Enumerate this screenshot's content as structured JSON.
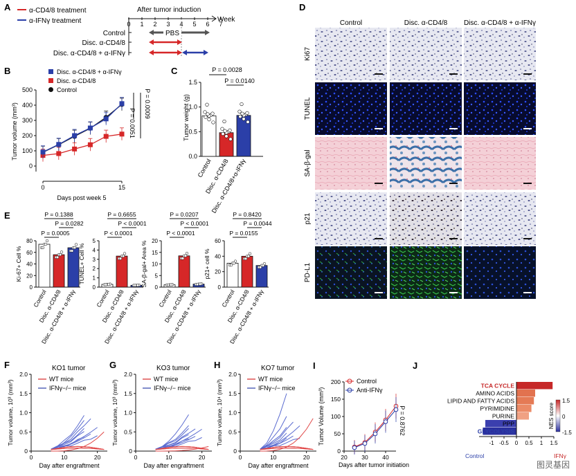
{
  "colors": {
    "red": "#d62728",
    "blue": "#2b3fa8",
    "black": "#111111",
    "grey": "#555555",
    "tuneBg": "#0b1036",
    "sagal": "#f3c9d1",
    "pdl1": "#0d1a2c"
  },
  "watermark": "图灵基因",
  "panelA": {
    "letter": "A",
    "legend": [
      "α-CD4/8 treatment",
      "α-IFNγ treatment"
    ],
    "timeline_title": "After tumor induction",
    "week_label": "Week",
    "ticks": [
      "0",
      "1",
      "2",
      "3",
      "4",
      "5",
      "6",
      "7"
    ],
    "rows": [
      "Control",
      "Disc. α-CD4/8",
      "Disc. α-CD4/8 + α-IFNγ"
    ],
    "pbs": "PBS"
  },
  "panelB": {
    "letter": "B",
    "legend": [
      "Disc. α-CD4/8 + α-IFNγ",
      "Disc. α-CD4/8",
      "Control"
    ],
    "ylabel": "Tumor volume (mm³)",
    "xlabel": "Days post week 5",
    "p1": "P = 0.0009",
    "p2": "P = 0.0051",
    "chart_data": {
      "type": "line",
      "x": [
        0,
        3,
        6,
        9,
        12,
        15
      ],
      "xlim": [
        0,
        15
      ],
      "ylim": [
        0,
        500
      ],
      "yticks": [
        0,
        100,
        200,
        300,
        400,
        500
      ],
      "series": [
        {
          "name": "Control",
          "values": [
            90,
            140,
            195,
            248,
            320,
            405
          ]
        },
        {
          "name": "Disc. α-CD4/8",
          "values": [
            70,
            82,
            112,
            140,
            195,
            210
          ]
        },
        {
          "name": "Disc. α-CD4/8 + α-IFNγ",
          "values": [
            92,
            142,
            200,
            250,
            310,
            410
          ]
        }
      ]
    }
  },
  "panelC": {
    "letter": "C",
    "ylabel": "Tumor weight (g)",
    "p1": "P = 0.0028",
    "p2": "P = 0.0140",
    "chart_data": {
      "type": "bar",
      "categories": [
        "Control",
        "Disc. α-CD4/8",
        "Disc. α-CD4/8+α-IFNγ"
      ],
      "values": [
        0.82,
        0.48,
        0.83
      ],
      "ylim": [
        0,
        1.5
      ],
      "yticks": [
        0,
        0.5,
        1.0,
        1.5
      ]
    }
  },
  "panelD": {
    "letter": "D",
    "columns": [
      "Control",
      "Disc. α-CD4/8",
      "Disc. α-CD4/8 + α-IFNγ"
    ],
    "rows": [
      "Ki67",
      "TUNEL",
      "SA-β-gal",
      "p21",
      "PD-L1"
    ]
  },
  "panelE": {
    "letter": "E",
    "categories": [
      "Control",
      "Disc. α-CD4/8",
      "Disc. α-CD4/8 + α-IFNγ"
    ],
    "charts": [
      {
        "ylabel": "Ki-67+ Cell %",
        "yticks": [
          "0",
          "20",
          "40",
          "60",
          "80"
        ],
        "ymax": 80,
        "values": [
          74,
          56,
          68
        ],
        "p": [
          "P = 0.1388",
          "P = 0.0282",
          "P = 0.0005"
        ]
      },
      {
        "ylabel": "TUNEL+ Cell %",
        "yticks": [
          "0",
          "1",
          "2",
          "3",
          "4",
          "5"
        ],
        "ymax": 5,
        "values": [
          0.3,
          3.35,
          0.2
        ],
        "p": [
          "P = 0.6655",
          "P < 0.0001",
          "P < 0.0001"
        ]
      },
      {
        "ylabel": "SA-β-gal+ Area %",
        "yticks": [
          "0",
          "5",
          "10",
          "15",
          "20"
        ],
        "ymax": 20,
        "values": [
          1.0,
          13.5,
          1.3
        ],
        "p": [
          "P = 0.0207",
          "P < 0.0001",
          "P < 0.0001"
        ]
      },
      {
        "ylabel": "p21+ cell %",
        "yticks": [
          "0",
          "20",
          "40",
          "60"
        ],
        "ymax": 60,
        "values": [
          31,
          40,
          28
        ],
        "p": [
          "P = 0.8420",
          "P = 0.0044",
          "P = 0.0155"
        ]
      }
    ]
  },
  "panelF": {
    "letter": "F",
    "title": "KO1 tumor",
    "legend": [
      "WT mice",
      "IFNγ−/− mice"
    ],
    "ylabel": "Tumor volume, 10³ (mm³)",
    "xlabel": "Day after engraftment",
    "yticks": [
      "0",
      "0.5",
      "1.0",
      "1.5",
      "2.0"
    ],
    "xticks": [
      "0",
      "10",
      "20"
    ]
  },
  "panelG": {
    "letter": "G",
    "title": "KO3 tumor",
    "legend": [
      "WT mice",
      "IFNγ−/− mice"
    ],
    "ylabel": "Tumor volume, 10³ (mm³)",
    "xlabel": "Day after engraftment",
    "yticks": [
      "0",
      "0.5",
      "1.0",
      "1.5",
      "2.0"
    ],
    "xticks": [
      "0",
      "10",
      "20"
    ]
  },
  "panelH": {
    "letter": "H",
    "title": "KO7 tumor",
    "legend": [
      "WT mice",
      "IFNγ−/− mice"
    ],
    "ylabel": "Tumor volume, 10⁴ (mm³)",
    "xlabel": "Day after engraftment",
    "yticks": [
      "0",
      "0.5",
      "1.0",
      "1.5",
      "2.0"
    ],
    "xticks": [
      "0",
      "10",
      "20"
    ]
  },
  "panelI": {
    "letter": "I",
    "legend": [
      "Control",
      "Anti-IFNγ"
    ],
    "ylabel": "Tumor Volume (mm³)",
    "xlabel": "Days after tumor initiation",
    "p": "P = 0.8762",
    "chart_data": {
      "type": "line",
      "x": [
        25,
        30,
        35,
        40,
        45
      ],
      "xlim": [
        20,
        45
      ],
      "ylim": [
        0,
        200
      ],
      "xticks": [
        20,
        30,
        40
      ],
      "yticks": [
        0,
        50,
        100,
        150,
        200
      ],
      "series": [
        {
          "name": "Control",
          "values": [
            12,
            25,
            55,
            90,
            130
          ]
        },
        {
          "name": "Anti-IFNγ",
          "values": [
            10,
            22,
            50,
            85,
            120
          ]
        }
      ]
    }
  },
  "panelJ": {
    "letter": "J",
    "chart_data": {
      "type": "bar",
      "categories": [
        "TCA CYCLE",
        "AMINO ACIDS",
        "LIPID AND FATTY ACIDS",
        "PYRIMIDINE",
        "PURINE",
        "PPP",
        "GLYCOLYSIS"
      ],
      "values": [
        1.45,
        0.75,
        0.7,
        0.6,
        0.5,
        -1.25,
        -1.35
      ],
      "xlim": [
        -1.5,
        1.5
      ],
      "xticks": [
        "-1",
        "-0.5",
        "0",
        "0.5",
        "1",
        "1.5"
      ]
    },
    "colorbar_title": "NES score",
    "colorbar_ticks": [
      "1.5",
      "0",
      "-1.5"
    ],
    "bottom_left": "Control",
    "bottom_right": "IFNγ"
  }
}
